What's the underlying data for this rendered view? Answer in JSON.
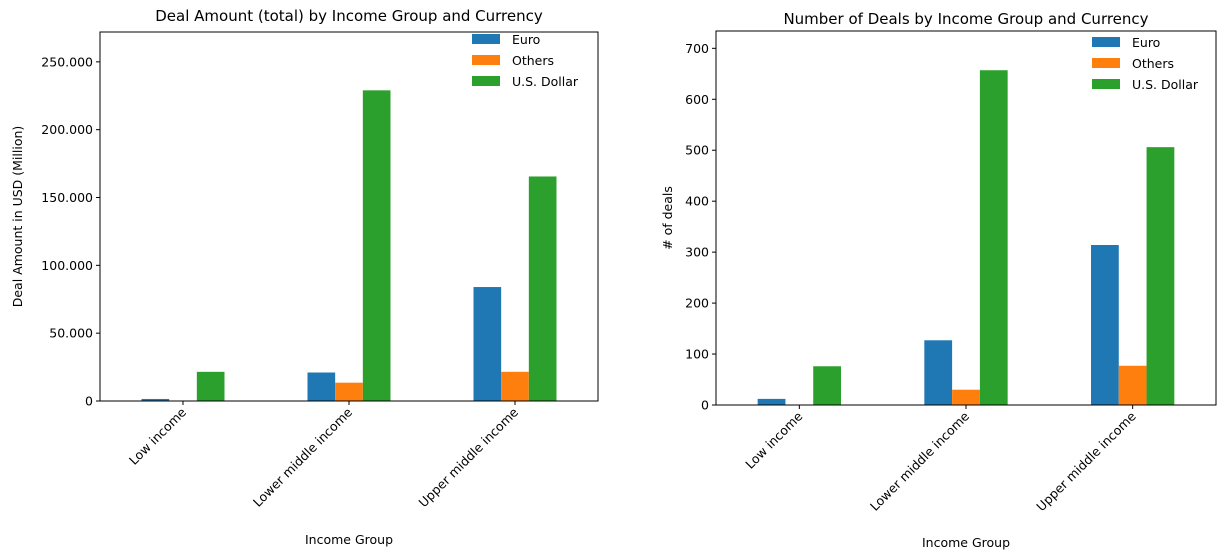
{
  "colors": {
    "Euro": "#1f77b4",
    "Others": "#ff7f0e",
    "U.S. Dollar": "#2ca02c"
  },
  "chart_data": [
    {
      "type": "bar",
      "title": "Deal Amount (total) by Income Group and Currency",
      "xlabel": "Income Group",
      "ylabel": "Deal Amount in USD (Million)",
      "categories": [
        "Low income",
        "Lower middle income",
        "Upper middle income"
      ],
      "series": [
        {
          "name": "Euro",
          "values": [
            1500,
            21000,
            84000
          ]
        },
        {
          "name": "Others",
          "values": [
            0,
            13500,
            21500
          ]
        },
        {
          "name": "U.S. Dollar",
          "values": [
            21500,
            229000,
            165500
          ]
        }
      ],
      "yticks": [
        0,
        50000,
        100000,
        150000,
        200000,
        250000
      ],
      "ytick_labels": [
        "0",
        "50.000",
        "100.000",
        "150.000",
        "200.000",
        "250.000"
      ],
      "ylim": [
        0,
        272000
      ],
      "legend": "top-right",
      "grid": false
    },
    {
      "type": "bar",
      "title": "Number of Deals by Income Group and Currency",
      "xlabel": "Income Group",
      "ylabel": "# of deals",
      "categories": [
        "Low income",
        "Lower middle income",
        "Upper middle income"
      ],
      "series": [
        {
          "name": "Euro",
          "values": [
            12,
            127,
            314
          ]
        },
        {
          "name": "Others",
          "values": [
            0,
            30,
            77
          ]
        },
        {
          "name": "U.S. Dollar",
          "values": [
            76,
            657,
            506
          ]
        }
      ],
      "yticks": [
        0,
        100,
        200,
        300,
        400,
        500,
        600,
        700
      ],
      "ytick_labels": [
        "0",
        "100",
        "200",
        "300",
        "400",
        "500",
        "600",
        "700"
      ],
      "ylim": [
        0,
        734
      ],
      "legend": "top-right",
      "grid": false
    }
  ]
}
